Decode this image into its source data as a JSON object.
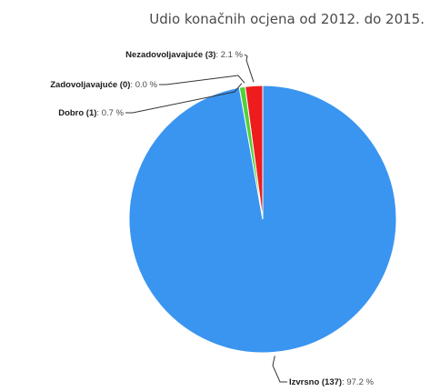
{
  "chart_data": {
    "type": "pie",
    "title": "Udio konačnih ocjena od 2012. do 2015.",
    "slices": [
      {
        "name": "Izvrsno",
        "count": 137,
        "percent": "97.2 %",
        "value": 97.2,
        "color": "#3a95f0"
      },
      {
        "name": "Dobro",
        "count": 1,
        "percent": "0.7 %",
        "value": 0.7,
        "color": "#4fd13a"
      },
      {
        "name": "Zadovoljavajuće",
        "count": 0,
        "percent": "0.0 %",
        "value": 0.0,
        "color": "#3aa0b0"
      },
      {
        "name": "Nezadovoljavajuće",
        "count": 3,
        "percent": "2.1 %",
        "value": 2.1,
        "color": "#ee1c1c"
      }
    ]
  }
}
